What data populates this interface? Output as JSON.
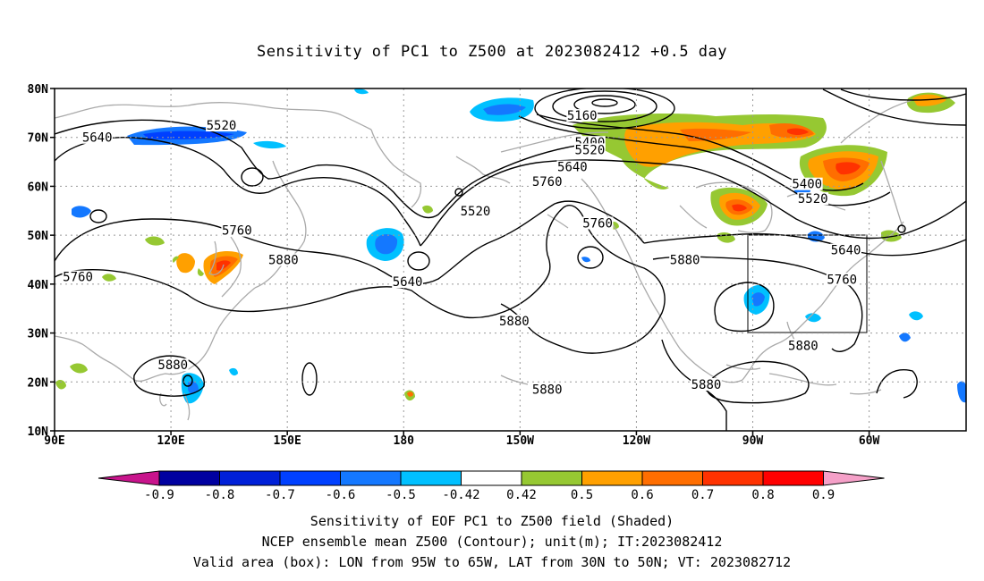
{
  "title": "Sensitivity of PC1 to Z500 at 2023082412 +0.5 day",
  "lat_labels": [
    "80N",
    "70N",
    "60N",
    "50N",
    "40N",
    "30N",
    "20N",
    "10N"
  ],
  "lon_labels": [
    "90E",
    "120E",
    "150E",
    "180",
    "150W",
    "120W",
    "90W",
    "60W"
  ],
  "contour_labels": [
    {
      "text": "5160",
      "lon": 226,
      "lat": 74.5
    },
    {
      "text": "5400",
      "lon": 228,
      "lat": 69
    },
    {
      "text": "5520",
      "lon": 228,
      "lat": 67.5
    },
    {
      "text": "5640",
      "lon": 223.5,
      "lat": 64
    },
    {
      "text": "5760",
      "lon": 217,
      "lat": 61
    },
    {
      "text": "5520",
      "lon": 133,
      "lat": 72.5
    },
    {
      "text": "5640",
      "lon": 101,
      "lat": 70
    },
    {
      "text": "5520",
      "lon": 198.5,
      "lat": 55
    },
    {
      "text": "5760",
      "lon": 137,
      "lat": 51
    },
    {
      "text": "5880",
      "lon": 149,
      "lat": 45
    },
    {
      "text": "5760",
      "lon": 96,
      "lat": 41.5
    },
    {
      "text": "5640",
      "lon": 181,
      "lat": 40.5
    },
    {
      "text": "5760",
      "lon": 230,
      "lat": 52.5
    },
    {
      "text": "5880",
      "lon": 252.5,
      "lat": 45
    },
    {
      "text": "5400",
      "lon": 284,
      "lat": 60.5
    },
    {
      "text": "5520",
      "lon": 285.5,
      "lat": 57.5
    },
    {
      "text": "5640",
      "lon": 294,
      "lat": 47
    },
    {
      "text": "5760",
      "lon": 293,
      "lat": 41
    },
    {
      "text": "5880",
      "lon": 208.5,
      "lat": 32.5
    },
    {
      "text": "5880",
      "lon": 120.5,
      "lat": 23.5
    },
    {
      "text": "5880",
      "lon": 283,
      "lat": 27.5
    },
    {
      "text": "5880",
      "lon": 217,
      "lat": 18.5
    },
    {
      "text": "5880",
      "lon": 258,
      "lat": 19.5
    }
  ],
  "valid_box": {
    "lon_min": 265,
    "lon_max": 295,
    "lat_min": 30,
    "lat_max": 50
  },
  "colorbar": {
    "tick_labels": [
      "-0.9",
      "-0.8",
      "-0.7",
      "-0.6",
      "-0.5",
      "-0.42",
      "0.42",
      "0.5",
      "0.6",
      "0.7",
      "0.8",
      "0.9"
    ],
    "colors": [
      "#c8148c",
      "#0000a0",
      "#0020d8",
      "#0040ff",
      "#1478ff",
      "#00c0ff",
      "#ffffff",
      "#96c832",
      "#ffa000",
      "#ff6e00",
      "#ff3200",
      "#ff0000",
      "#f5a0c8"
    ]
  },
  "captions": [
    "Sensitivity of EOF PC1 to Z500 field (Shaded)",
    "NCEP ensemble mean Z500 (Contour); unit(m); IT:2023082412",
    "Valid area (box): LON from 95W to 65W, LAT from 30N to 50N; VT: 2023082712"
  ]
}
